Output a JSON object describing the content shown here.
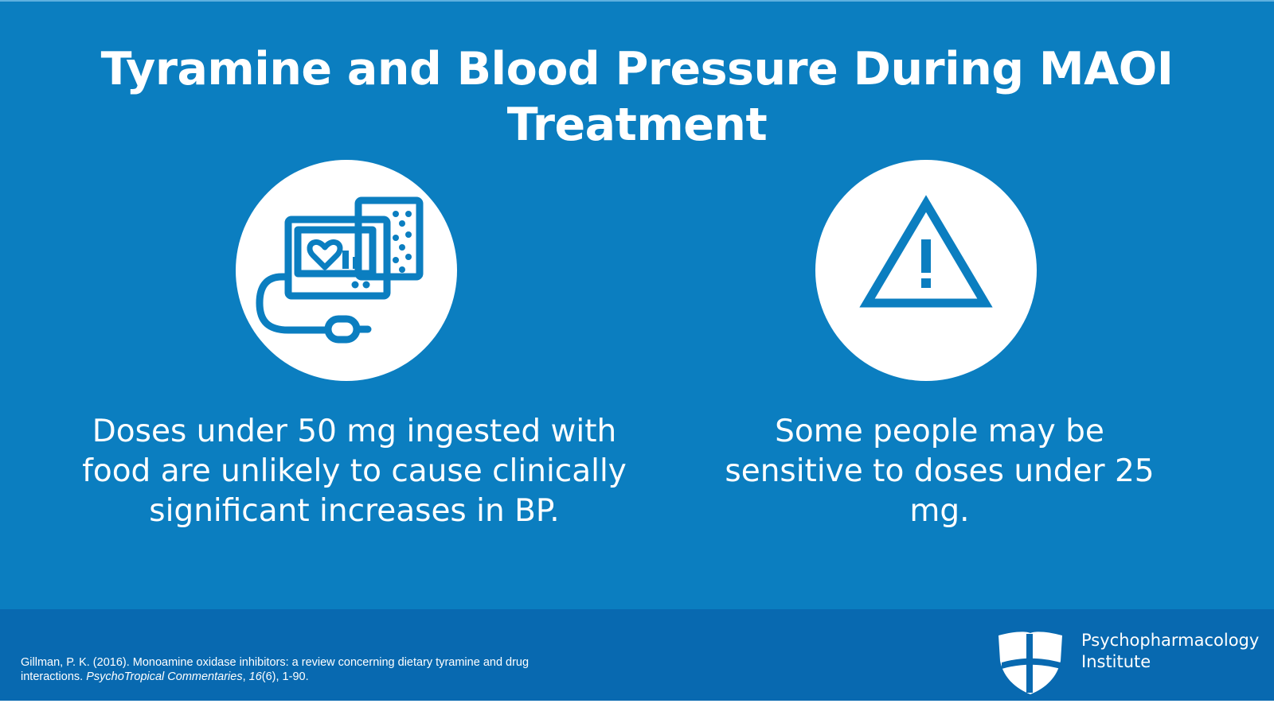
{
  "title": "Tyramine and Blood Pressure During MAOI Treatment",
  "colors": {
    "background": "#0b7ec0",
    "footer": "#0869b0",
    "text": "#ffffff",
    "icon": "#0b7ec0"
  },
  "items": [
    {
      "icon": "blood-pressure-monitor-icon",
      "caption": "Doses under 50 mg ingested with food are unlikely to cause clinically significant increases in BP."
    },
    {
      "icon": "warning-icon",
      "caption": "Some people may be sensitive to doses under 25 mg."
    }
  ],
  "citation": {
    "prefix": "Gillman, P. K. (2016). Monoamine oxidase inhibitors: a review concerning dietary tyramine and drug interactions. ",
    "journal": "PsychoTropical Commentaries",
    "sep1": ", ",
    "volume": "16",
    "rest": "(6), 1-90."
  },
  "brand": {
    "line1": "Psychopharmacology",
    "line2": "Institute",
    "logo_icon": "shield-cross-icon"
  }
}
